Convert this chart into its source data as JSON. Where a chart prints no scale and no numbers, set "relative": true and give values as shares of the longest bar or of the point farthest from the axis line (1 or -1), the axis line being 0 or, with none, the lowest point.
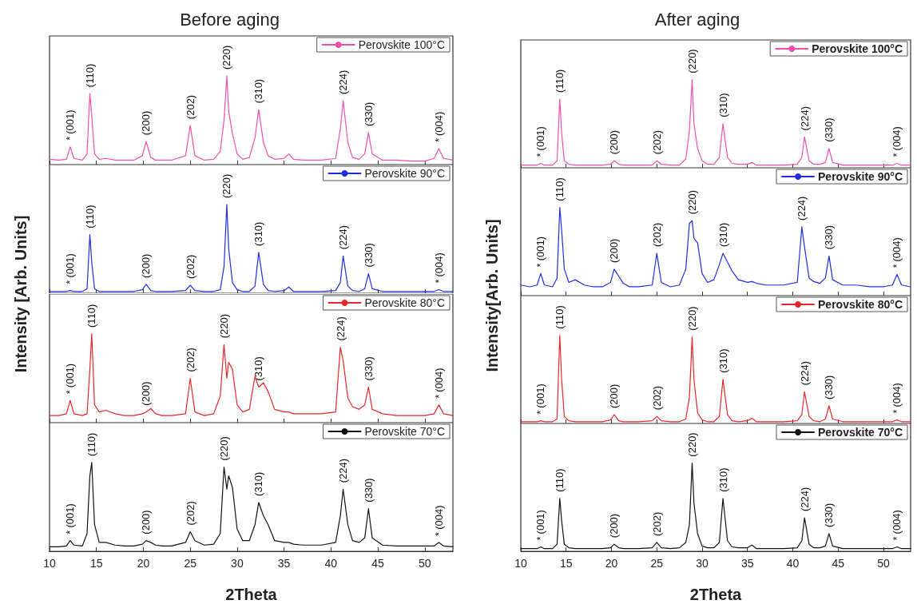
{
  "chart_data": [
    {
      "type": "line",
      "relative": true,
      "title": "Before aging",
      "legend": "top right",
      "tick_labels": false,
      "xlim": [
        10,
        53
      ],
      "xticks": [
        10,
        15,
        20,
        25,
        30,
        35,
        40,
        45,
        50
      ],
      "x": [
        10,
        11,
        11.8,
        12.2,
        12.6,
        13.5,
        14.0,
        14.3,
        14.5,
        14.8,
        15.3,
        16,
        17,
        18,
        19,
        19.9,
        20.3,
        20.8,
        21.3,
        22,
        23,
        24.5,
        25.0,
        25.5,
        26.5,
        27.5,
        28.2,
        28.6,
        28.9,
        29.1,
        29.5,
        30.0,
        30.6,
        31.3,
        31.9,
        32.3,
        32.8,
        33.3,
        34,
        35,
        35.5,
        36,
        37,
        38,
        39,
        40.5,
        41.0,
        41.3,
        41.8,
        42.3,
        43,
        43.6,
        44.0,
        44.4,
        45.5,
        47,
        48.5,
        50,
        51.0,
        51.5,
        52.0,
        53
      ],
      "series": [
        {
          "name": "Perovskite 100°C",
          "color": "#ee4fb0",
          "values": [
            0.06,
            0.05,
            0.06,
            0.2,
            0.07,
            0.05,
            0.12,
            0.8,
            0.55,
            0.12,
            0.06,
            0.07,
            0.05,
            0.05,
            0.05,
            0.1,
            0.26,
            0.08,
            0.05,
            0.05,
            0.05,
            0.1,
            0.44,
            0.1,
            0.05,
            0.06,
            0.15,
            0.5,
            1,
            0.6,
            0.35,
            0.12,
            0.06,
            0.08,
            0.3,
            0.62,
            0.25,
            0.1,
            0.06,
            0.07,
            0.12,
            0.06,
            0.05,
            0.05,
            0.05,
            0.07,
            0.4,
            0.72,
            0.25,
            0.08,
            0.06,
            0.12,
            0.36,
            0.12,
            0.05,
            0.05,
            0.04,
            0.04,
            0.07,
            0.18,
            0.07,
            0.05
          ]
        }
      ],
      "annotations": [
        {
          "text": "*",
          "x": 12.2,
          "y": 0.2
        },
        {
          "text": "(001)",
          "x": 12.2,
          "y": 0.2
        },
        {
          "text": "(110)",
          "x": 14.3,
          "y": 0.8
        },
        {
          "text": "(200)",
          "x": 20.3,
          "y": 0.26
        },
        {
          "text": "(202)",
          "x": 25.0,
          "y": 0.44
        },
        {
          "text": "(220)",
          "x": 28.9,
          "y": 1
        },
        {
          "text": "(310)",
          "x": 32.3,
          "y": 0.62
        },
        {
          "text": "(224)",
          "x": 41.3,
          "y": 0.72
        },
        {
          "text": "(330)",
          "x": 44.0,
          "y": 0.36
        },
        {
          "text": "*",
          "x": 51.5,
          "y": 0.18
        },
        {
          "text": "(004)",
          "x": 51.5,
          "y": 0.18
        }
      ]
    },
    {
      "type": "line",
      "relative": true,
      "ylabel": "Intensity [Arb. Units]",
      "legend": "top right",
      "tick_labels": false,
      "xlim": [
        10,
        53
      ],
      "xticks": [
        10,
        15,
        20,
        25,
        30,
        35,
        40,
        45,
        50
      ],
      "x": [
        10,
        11,
        11.8,
        12.2,
        12.6,
        13.5,
        14.0,
        14.3,
        14.5,
        14.8,
        15.3,
        16,
        17,
        18,
        19,
        19.9,
        20.3,
        20.8,
        21.3,
        22,
        23,
        24.5,
        25.0,
        25.5,
        26.5,
        27.5,
        28.2,
        28.6,
        28.9,
        29.1,
        29.5,
        30.0,
        30.6,
        31.3,
        31.9,
        32.3,
        32.8,
        33.3,
        34,
        35,
        35.5,
        36,
        37,
        38,
        39,
        40.5,
        41.0,
        41.3,
        41.8,
        42.3,
        43,
        43.6,
        44.0,
        44.4,
        45.5,
        47,
        48.5,
        50,
        51.0,
        51.5,
        52.0,
        53
      ],
      "series": [
        {
          "name": "Perovskite 90°C",
          "color": "#1f2ee0",
          "values": [
            0.02,
            0.02,
            0.02,
            0.03,
            0.02,
            0.02,
            0.05,
            0.66,
            0.35,
            0.05,
            0.02,
            0.02,
            0.02,
            0.02,
            0.02,
            0.04,
            0.1,
            0.03,
            0.02,
            0.02,
            0.02,
            0.03,
            0.09,
            0.03,
            0.02,
            0.02,
            0.04,
            0.3,
            1,
            0.5,
            0.12,
            0.04,
            0.02,
            0.02,
            0.08,
            0.46,
            0.1,
            0.03,
            0.02,
            0.03,
            0.07,
            0.02,
            0.02,
            0.02,
            0.02,
            0.03,
            0.12,
            0.42,
            0.08,
            0.03,
            0.02,
            0.05,
            0.22,
            0.05,
            0.02,
            0.02,
            0.02,
            0.02,
            0.02,
            0.04,
            0.02,
            0.02
          ]
        }
      ],
      "annotations": [
        {
          "text": "*",
          "x": 12.2,
          "y": 0.03
        },
        {
          "text": "(001)",
          "x": 12.2,
          "y": 0.03
        },
        {
          "text": "(110)",
          "x": 14.3,
          "y": 0.66
        },
        {
          "text": "(200)",
          "x": 20.3,
          "y": 0.1
        },
        {
          "text": "(202)",
          "x": 25.0,
          "y": 0.09
        },
        {
          "text": "(220)",
          "x": 28.9,
          "y": 1
        },
        {
          "text": "(310)",
          "x": 32.3,
          "y": 0.46
        },
        {
          "text": "(224)",
          "x": 41.3,
          "y": 0.42
        },
        {
          "text": "(330)",
          "x": 44.0,
          "y": 0.22
        },
        {
          "text": "*",
          "x": 51.5,
          "y": 0.04
        },
        {
          "text": "(004)",
          "x": 51.5,
          "y": 0.04
        }
      ]
    },
    {
      "type": "line",
      "relative": true,
      "legend": "top right",
      "tick_labels": false,
      "xlim": [
        10,
        53
      ],
      "xticks": [
        10,
        15,
        20,
        25,
        30,
        35,
        40,
        45,
        50
      ],
      "x": [
        10,
        11,
        11.8,
        12.2,
        12.6,
        13.5,
        14.0,
        14.3,
        14.5,
        14.8,
        15.3,
        16,
        17,
        18,
        19,
        19.9,
        20.3,
        20.8,
        21.3,
        22,
        23,
        24.5,
        25.0,
        25.5,
        26.5,
        27.5,
        28.2,
        28.6,
        28.9,
        29.1,
        29.5,
        30.0,
        30.6,
        31.3,
        31.9,
        32.3,
        32.8,
        33.3,
        34,
        35,
        35.5,
        36,
        37,
        38,
        39,
        40.5,
        41.0,
        41.3,
        41.8,
        42.3,
        43,
        43.6,
        44.0,
        44.4,
        45.5,
        47,
        48.5,
        50,
        51.0,
        51.5,
        52.0,
        53
      ],
      "series": [
        {
          "name": "Perovskite 80°C",
          "color": "#e8262a",
          "values": [
            0.08,
            0.08,
            0.1,
            0.25,
            0.1,
            0.08,
            0.1,
            0.6,
            1,
            0.2,
            0.12,
            0.14,
            0.1,
            0.08,
            0.08,
            0.1,
            0.12,
            0.16,
            0.1,
            0.08,
            0.08,
            0.1,
            0.5,
            0.12,
            0.08,
            0.1,
            0.3,
            0.88,
            0.5,
            0.68,
            0.6,
            0.2,
            0.12,
            0.15,
            0.52,
            0.4,
            0.45,
            0.35,
            0.15,
            0.12,
            0.12,
            0.1,
            0.1,
            0.1,
            0.1,
            0.12,
            0.85,
            0.7,
            0.28,
            0.18,
            0.15,
            0.2,
            0.4,
            0.15,
            0.1,
            0.08,
            0.08,
            0.08,
            0.1,
            0.2,
            0.1,
            0.08
          ]
        }
      ],
      "annotations": [
        {
          "text": "*",
          "x": 12.2,
          "y": 0.25
        },
        {
          "text": "(001)",
          "x": 12.2,
          "y": 0.25
        },
        {
          "text": "(110)",
          "x": 14.5,
          "y": 1
        },
        {
          "text": "(200)",
          "x": 20.3,
          "y": 0.12
        },
        {
          "text": "(202)",
          "x": 25.0,
          "y": 0.5
        },
        {
          "text": "(220)",
          "x": 28.6,
          "y": 0.88
        },
        {
          "text": "(310)",
          "x": 32.3,
          "y": 0.4
        },
        {
          "text": "(224)",
          "x": 41.0,
          "y": 0.85
        },
        {
          "text": "(330)",
          "x": 44.0,
          "y": 0.4
        },
        {
          "text": "*",
          "x": 51.5,
          "y": 0.2
        },
        {
          "text": "(004)",
          "x": 51.5,
          "y": 0.2
        }
      ]
    },
    {
      "type": "line",
      "relative": true,
      "xlabel": "2Theta",
      "legend": "top right",
      "tick_labels": "x",
      "xlim": [
        10,
        53
      ],
      "xticks": [
        10,
        15,
        20,
        25,
        30,
        35,
        40,
        45,
        50
      ],
      "x": [
        10,
        11,
        11.8,
        12.2,
        12.6,
        13.5,
        14.0,
        14.3,
        14.5,
        14.8,
        15.3,
        16,
        17,
        18,
        19,
        19.9,
        20.3,
        20.8,
        21.3,
        22,
        23,
        24.5,
        25.0,
        25.5,
        26.5,
        27.5,
        28.2,
        28.6,
        28.9,
        29.1,
        29.5,
        30.0,
        30.6,
        31.3,
        31.9,
        32.3,
        32.8,
        33.3,
        34,
        35,
        35.5,
        36,
        37,
        38,
        39,
        40.5,
        41.0,
        41.3,
        41.8,
        42.3,
        43,
        43.6,
        44.0,
        44.4,
        45.5,
        47,
        48.5,
        50,
        51.0,
        51.5,
        52.0,
        53
      ],
      "series": [
        {
          "name": "Perovskite 70°C",
          "color": "#111111",
          "values": [
            0.05,
            0.05,
            0.06,
            0.12,
            0.07,
            0.06,
            0.2,
            0.85,
            1,
            0.3,
            0.1,
            0.1,
            0.07,
            0.06,
            0.06,
            0.08,
            0.12,
            0.1,
            0.07,
            0.06,
            0.06,
            0.1,
            0.22,
            0.12,
            0.07,
            0.08,
            0.2,
            0.95,
            0.7,
            0.85,
            0.72,
            0.25,
            0.12,
            0.12,
            0.3,
            0.55,
            0.4,
            0.3,
            0.12,
            0.1,
            0.1,
            0.08,
            0.07,
            0.07,
            0.07,
            0.1,
            0.4,
            0.7,
            0.3,
            0.12,
            0.1,
            0.15,
            0.48,
            0.15,
            0.07,
            0.06,
            0.06,
            0.06,
            0.06,
            0.1,
            0.06,
            0.05
          ]
        }
      ],
      "annotations": [
        {
          "text": "*",
          "x": 12.2,
          "y": 0.12
        },
        {
          "text": "(001)",
          "x": 12.2,
          "y": 0.12
        },
        {
          "text": "(110)",
          "x": 14.5,
          "y": 1
        },
        {
          "text": "(200)",
          "x": 20.3,
          "y": 0.12
        },
        {
          "text": "(202)",
          "x": 25.0,
          "y": 0.22
        },
        {
          "text": "(220)",
          "x": 28.6,
          "y": 0.95
        },
        {
          "text": "(310)",
          "x": 32.3,
          "y": 0.55
        },
        {
          "text": "(224)",
          "x": 41.3,
          "y": 0.7
        },
        {
          "text": "(330)",
          "x": 44.0,
          "y": 0.48
        },
        {
          "text": "*",
          "x": 51.5,
          "y": 0.1
        },
        {
          "text": "(004)",
          "x": 51.5,
          "y": 0.1
        }
      ]
    },
    {
      "type": "line",
      "relative": true,
      "title": "After aging",
      "legend": "top right",
      "tick_labels": false,
      "xlim": [
        10,
        53
      ],
      "xticks": [
        10,
        15,
        20,
        25,
        30,
        35,
        40,
        45,
        50
      ],
      "x": [
        10,
        11,
        11.8,
        12.2,
        12.6,
        13.5,
        14.0,
        14.3,
        14.5,
        14.8,
        15.3,
        16,
        17,
        18,
        19,
        19.9,
        20.3,
        20.8,
        21.3,
        22,
        23,
        24.5,
        25.0,
        25.5,
        26.5,
        27.5,
        28.2,
        28.6,
        28.9,
        29.1,
        29.5,
        30.0,
        30.6,
        31.3,
        31.9,
        32.3,
        32.8,
        33.3,
        34,
        35,
        35.5,
        36,
        37,
        38,
        39,
        40.5,
        41.0,
        41.3,
        41.8,
        42.3,
        43,
        43.6,
        44.0,
        44.4,
        45.5,
        47,
        48.5,
        50,
        51.0,
        51.5,
        52.0,
        53
      ],
      "series": [
        {
          "name": "Perovskite 100°C",
          "color": "#ee4fb0",
          "values": [
            0.03,
            0.03,
            0.03,
            0.05,
            0.03,
            0.03,
            0.08,
            0.78,
            0.4,
            0.08,
            0.04,
            0.03,
            0.03,
            0.03,
            0.03,
            0.04,
            0.08,
            0.04,
            0.03,
            0.03,
            0.03,
            0.03,
            0.08,
            0.04,
            0.03,
            0.03,
            0.1,
            0.42,
            1,
            0.5,
            0.22,
            0.08,
            0.04,
            0.04,
            0.12,
            0.5,
            0.12,
            0.05,
            0.04,
            0.04,
            0.06,
            0.03,
            0.03,
            0.03,
            0.03,
            0.04,
            0.12,
            0.35,
            0.08,
            0.04,
            0.04,
            0.06,
            0.22,
            0.06,
            0.03,
            0.03,
            0.03,
            0.03,
            0.03,
            0.05,
            0.03,
            0.03
          ]
        }
      ],
      "annotations": [
        {
          "text": "*",
          "x": 12.2,
          "y": 0.05
        },
        {
          "text": "(001)",
          "x": 12.2,
          "y": 0.05
        },
        {
          "text": "(110)",
          "x": 14.3,
          "y": 0.78
        },
        {
          "text": "(200)",
          "x": 20.3,
          "y": 0.08
        },
        {
          "text": "(202)",
          "x": 25.0,
          "y": 0.08
        },
        {
          "text": "(220)",
          "x": 28.9,
          "y": 1
        },
        {
          "text": "(310)",
          "x": 32.3,
          "y": 0.5
        },
        {
          "text": "(224)",
          "x": 41.3,
          "y": 0.35
        },
        {
          "text": "(330)",
          "x": 44.0,
          "y": 0.22
        },
        {
          "text": "*",
          "x": 51.5,
          "y": 0.05
        },
        {
          "text": "(004)",
          "x": 51.5,
          "y": 0.05
        }
      ]
    },
    {
      "type": "line",
      "relative": true,
      "ylabel": "Intensity[Arb. Units]",
      "legend": "top right",
      "tick_labels": false,
      "xlim": [
        10,
        53
      ],
      "xticks": [
        10,
        15,
        20,
        25,
        30,
        35,
        40,
        45,
        50
      ],
      "x": [
        10,
        11,
        11.8,
        12.2,
        12.6,
        13.5,
        14.0,
        14.3,
        14.5,
        14.8,
        15.3,
        16,
        17,
        18,
        19,
        19.9,
        20.3,
        20.8,
        21.3,
        22,
        23,
        24.5,
        25.0,
        25.5,
        26.5,
        27.5,
        28.2,
        28.6,
        28.9,
        29.1,
        29.5,
        30.0,
        30.6,
        31.3,
        31.9,
        32.3,
        32.8,
        33.3,
        34,
        35,
        35.5,
        36,
        37,
        38,
        39,
        40.5,
        41.0,
        41.3,
        41.8,
        42.3,
        43,
        43.6,
        44.0,
        44.4,
        45.5,
        47,
        48.5,
        50,
        51.0,
        51.5,
        52.0,
        53
      ],
      "series": [
        {
          "name": "Perovskite 90°C",
          "color": "#1f2ee0",
          "values": [
            0.12,
            0.1,
            0.12,
            0.25,
            0.12,
            0.1,
            0.2,
            1,
            0.75,
            0.3,
            0.15,
            0.18,
            0.12,
            0.1,
            0.1,
            0.15,
            0.3,
            0.22,
            0.14,
            0.1,
            0.1,
            0.12,
            0.48,
            0.15,
            0.1,
            0.12,
            0.3,
            0.82,
            0.85,
            0.65,
            0.6,
            0.25,
            0.15,
            0.18,
            0.35,
            0.48,
            0.38,
            0.28,
            0.18,
            0.15,
            0.16,
            0.14,
            0.12,
            0.12,
            0.12,
            0.15,
            0.78,
            0.55,
            0.2,
            0.16,
            0.14,
            0.2,
            0.45,
            0.18,
            0.12,
            0.12,
            0.1,
            0.1,
            0.12,
            0.24,
            0.12,
            0.1
          ]
        }
      ],
      "annotations": [
        {
          "text": "*",
          "x": 12.2,
          "y": 0.25
        },
        {
          "text": "(001)",
          "x": 12.2,
          "y": 0.25
        },
        {
          "text": "(110)",
          "x": 14.3,
          "y": 1
        },
        {
          "text": "(200)",
          "x": 20.3,
          "y": 0.3
        },
        {
          "text": "(202)",
          "x": 25.0,
          "y": 0.48
        },
        {
          "text": "(220)",
          "x": 28.9,
          "y": 0.85
        },
        {
          "text": "(310)",
          "x": 32.3,
          "y": 0.48
        },
        {
          "text": "(224)",
          "x": 41.0,
          "y": 0.78
        },
        {
          "text": "(330)",
          "x": 44.0,
          "y": 0.45
        },
        {
          "text": "*",
          "x": 51.5,
          "y": 0.24
        },
        {
          "text": "(004)",
          "x": 51.5,
          "y": 0.24
        }
      ]
    },
    {
      "type": "line",
      "relative": true,
      "legend": "top right",
      "tick_labels": false,
      "xlim": [
        10,
        53
      ],
      "xticks": [
        10,
        15,
        20,
        25,
        30,
        35,
        40,
        45,
        50
      ],
      "x": [
        10,
        11,
        11.8,
        12.2,
        12.6,
        13.5,
        14.0,
        14.3,
        14.5,
        14.8,
        15.3,
        16,
        17,
        18,
        19,
        19.9,
        20.3,
        20.8,
        21.3,
        22,
        23,
        24.5,
        25.0,
        25.5,
        26.5,
        27.5,
        28.2,
        28.6,
        28.9,
        29.1,
        29.5,
        30.0,
        30.6,
        31.3,
        31.9,
        32.3,
        32.8,
        33.3,
        34,
        35,
        35.5,
        36,
        37,
        38,
        39,
        40.5,
        41.0,
        41.3,
        41.8,
        42.3,
        43,
        43.6,
        44.0,
        44.4,
        45.5,
        47,
        48.5,
        50,
        51.0,
        51.5,
        52.0,
        53
      ],
      "series": [
        {
          "name": "Perovskite 80°C",
          "color": "#e8262a",
          "values": [
            0.02,
            0.02,
            0.02,
            0.03,
            0.02,
            0.02,
            0.05,
            1,
            0.5,
            0.08,
            0.03,
            0.02,
            0.02,
            0.02,
            0.02,
            0.04,
            0.1,
            0.03,
            0.02,
            0.02,
            0.02,
            0.03,
            0.08,
            0.03,
            0.02,
            0.02,
            0.05,
            0.3,
            0.98,
            0.5,
            0.12,
            0.04,
            0.02,
            0.02,
            0.08,
            0.5,
            0.1,
            0.03,
            0.02,
            0.03,
            0.06,
            0.02,
            0.02,
            0.02,
            0.02,
            0.03,
            0.1,
            0.36,
            0.08,
            0.03,
            0.02,
            0.05,
            0.2,
            0.05,
            0.02,
            0.02,
            0.02,
            0.02,
            0.02,
            0.04,
            0.02,
            0.02
          ]
        }
      ],
      "annotations": [
        {
          "text": "*",
          "x": 12.2,
          "y": 0.03
        },
        {
          "text": "(001)",
          "x": 12.2,
          "y": 0.03
        },
        {
          "text": "(110)",
          "x": 14.3,
          "y": 1
        },
        {
          "text": "(200)",
          "x": 20.3,
          "y": 0.1
        },
        {
          "text": "(202)",
          "x": 25.0,
          "y": 0.08
        },
        {
          "text": "(220)",
          "x": 28.9,
          "y": 0.98
        },
        {
          "text": "(310)",
          "x": 32.3,
          "y": 0.5
        },
        {
          "text": "(224)",
          "x": 41.3,
          "y": 0.36
        },
        {
          "text": "(330)",
          "x": 44.0,
          "y": 0.2
        },
        {
          "text": "*",
          "x": 51.5,
          "y": 0.04
        },
        {
          "text": "(004)",
          "x": 51.5,
          "y": 0.04
        }
      ]
    },
    {
      "type": "line",
      "relative": true,
      "xlabel": "2Theta",
      "legend": "top right",
      "tick_labels": "x",
      "xlim": [
        10,
        53
      ],
      "xticks": [
        10,
        15,
        20,
        25,
        30,
        35,
        40,
        45,
        50
      ],
      "x": [
        10,
        11,
        11.8,
        12.2,
        12.6,
        13.5,
        14.0,
        14.3,
        14.5,
        14.8,
        15.3,
        16,
        17,
        18,
        19,
        19.9,
        20.3,
        20.8,
        21.3,
        22,
        23,
        24.5,
        25.0,
        25.5,
        26.5,
        27.5,
        28.2,
        28.6,
        28.9,
        29.1,
        29.5,
        30.0,
        30.6,
        31.3,
        31.9,
        32.3,
        32.8,
        33.3,
        34,
        35,
        35.5,
        36,
        37,
        38,
        39,
        40.5,
        41.0,
        41.3,
        41.8,
        42.3,
        43,
        43.6,
        44.0,
        44.4,
        45.5,
        47,
        48.5,
        50,
        51.0,
        51.5,
        52.0,
        53
      ],
      "series": [
        {
          "name": "Perovskite 70°C",
          "color": "#111111",
          "values": [
            0.03,
            0.03,
            0.03,
            0.05,
            0.03,
            0.03,
            0.08,
            0.6,
            0.35,
            0.08,
            0.04,
            0.03,
            0.03,
            0.03,
            0.03,
            0.04,
            0.08,
            0.04,
            0.03,
            0.03,
            0.03,
            0.04,
            0.1,
            0.04,
            0.03,
            0.04,
            0.1,
            0.3,
            1,
            0.55,
            0.2,
            0.06,
            0.04,
            0.04,
            0.1,
            0.6,
            0.12,
            0.05,
            0.04,
            0.04,
            0.07,
            0.03,
            0.03,
            0.03,
            0.03,
            0.04,
            0.12,
            0.38,
            0.08,
            0.04,
            0.04,
            0.06,
            0.2,
            0.06,
            0.03,
            0.03,
            0.03,
            0.03,
            0.03,
            0.05,
            0.03,
            0.03
          ]
        }
      ],
      "annotations": [
        {
          "text": "*",
          "x": 12.2,
          "y": 0.05
        },
        {
          "text": "(001)",
          "x": 12.2,
          "y": 0.05
        },
        {
          "text": "(110)",
          "x": 14.3,
          "y": 0.6
        },
        {
          "text": "(200)",
          "x": 20.3,
          "y": 0.08
        },
        {
          "text": "(202)",
          "x": 25.0,
          "y": 0.1
        },
        {
          "text": "(220)",
          "x": 28.9,
          "y": 1
        },
        {
          "text": "(310)",
          "x": 32.3,
          "y": 0.6
        },
        {
          "text": "(224)",
          "x": 41.3,
          "y": 0.38
        },
        {
          "text": "(330)",
          "x": 44.0,
          "y": 0.2
        },
        {
          "text": "*",
          "x": 51.5,
          "y": 0.05
        },
        {
          "text": "(004)",
          "x": 51.5,
          "y": 0.05
        }
      ]
    }
  ]
}
